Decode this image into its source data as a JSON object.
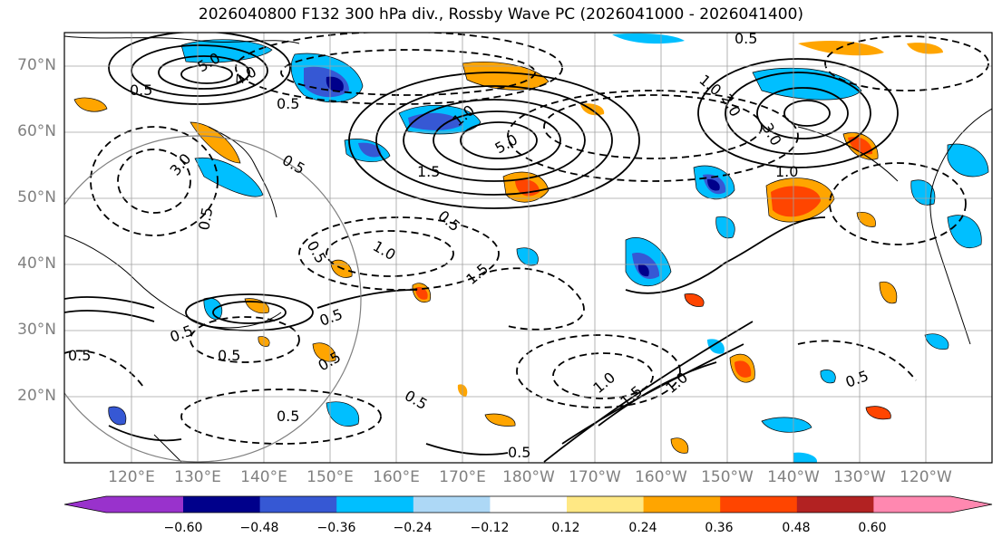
{
  "title": "2026040800 F132 300 hPa div., Rossby Wave PC (2026041000 - 2026041400)",
  "lat_labels": [
    "70°N",
    "60°N",
    "50°N",
    "40°N",
    "30°N",
    "20°N"
  ],
  "lon_labels": [
    "120°E",
    "130°E",
    "140°E",
    "150°E",
    "160°E",
    "170°E",
    "180°W",
    "170°W",
    "160°W",
    "150°W",
    "140°W",
    "130°W",
    "120°W"
  ],
  "colorbar": {
    "colors": [
      "#9932cc",
      "#00008b",
      "#3658d4",
      "#00bfff",
      "#add8f6",
      "#ffffff",
      "#ffe884",
      "#ffa500",
      "#ff4500",
      "#b22222",
      "#ff88b0"
    ],
    "labels": [
      "−0.60",
      "−0.48",
      "−0.36",
      "−0.24",
      "−0.12",
      "0.12",
      "0.24",
      "0.36",
      "0.48",
      "0.60"
    ]
  },
  "contour_labels": [
    "5.0",
    "4.0",
    "0.5",
    "0.5",
    "1.0",
    "5.0",
    "1.5",
    "2.0",
    "3.0",
    "1.0",
    "0.5",
    "0.5",
    "3.0",
    "0.5",
    "1.0",
    "0.5",
    "0.5",
    "1.5",
    "0.5",
    "0.5",
    "0.5",
    "0.5",
    "0.5",
    "0.5",
    "1.5",
    "1.0",
    "0.5",
    "0.5",
    "1.0",
    "1.0",
    "0.5"
  ],
  "colors": {
    "contour": "#000000",
    "grid": "#a0a0a0",
    "axis_label": "#808080"
  }
}
